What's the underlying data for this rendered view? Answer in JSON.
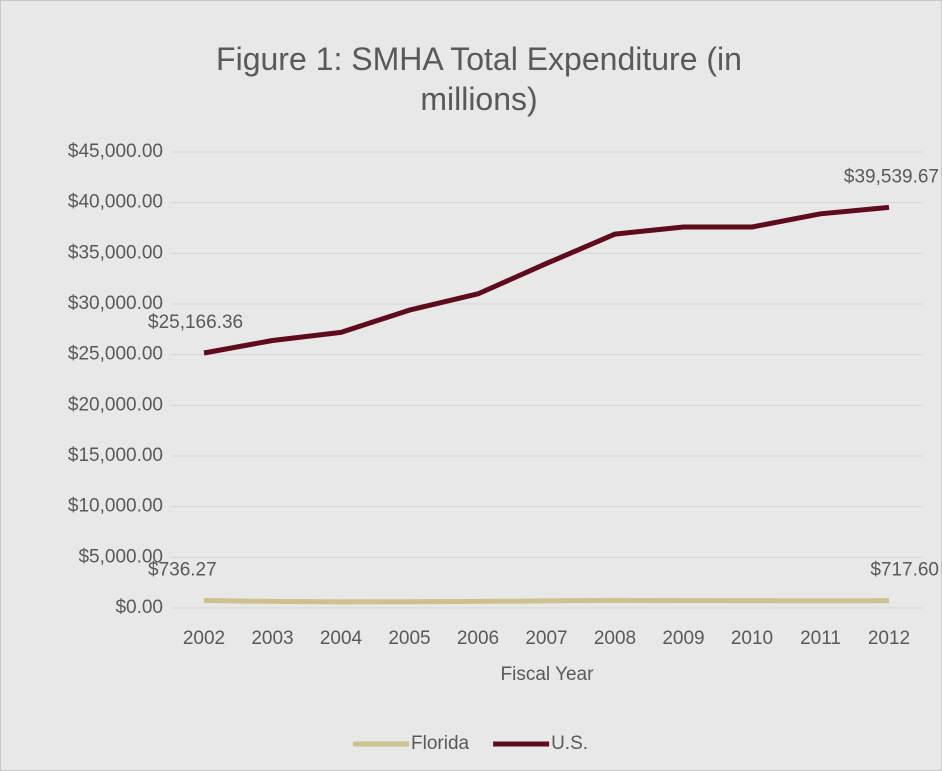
{
  "chart_data": {
    "type": "line",
    "title": "Figure 1: SMHA Total Expenditure (in millions)",
    "x_label": "Fiscal Year",
    "categories": [
      "2002",
      "2003",
      "2004",
      "2005",
      "2006",
      "2007",
      "2008",
      "2009",
      "2010",
      "2011",
      "2012"
    ],
    "series": [
      {
        "name": "Florida",
        "color": "#cec08f",
        "values": [
          736.27,
          650,
          600,
          620,
          650,
          700,
          750,
          730,
          720,
          700,
          717.6
        ],
        "value_labels": [
          "$736.27",
          null,
          null,
          null,
          null,
          null,
          null,
          null,
          null,
          null,
          "$717.60"
        ]
      },
      {
        "name": "U.S.",
        "color": "#5e0b1c",
        "values": [
          25166.36,
          26400,
          27200,
          29400,
          31000,
          34000,
          36900,
          37600,
          37600,
          38900,
          39539.67
        ],
        "value_labels": [
          "$25,166.36",
          null,
          null,
          null,
          null,
          null,
          null,
          null,
          null,
          null,
          "$39,539.67"
        ]
      }
    ],
    "ylim": [
      0,
      45000
    ],
    "yticks": [
      {
        "value": 0,
        "label": "$0.00"
      },
      {
        "value": 5000,
        "label": "$5,000.00"
      },
      {
        "value": 10000,
        "label": "$10,000.00"
      },
      {
        "value": 15000,
        "label": "$15,000.00"
      },
      {
        "value": 20000,
        "label": "$20,000.00"
      },
      {
        "value": 25000,
        "label": "$25,000.00"
      },
      {
        "value": 30000,
        "label": "$30,000.00"
      },
      {
        "value": 35000,
        "label": "$35,000.00"
      },
      {
        "value": 40000,
        "label": "$40,000.00"
      },
      {
        "value": 45000,
        "label": "$45,000.00"
      }
    ],
    "grid": true,
    "legend": "bottom"
  }
}
